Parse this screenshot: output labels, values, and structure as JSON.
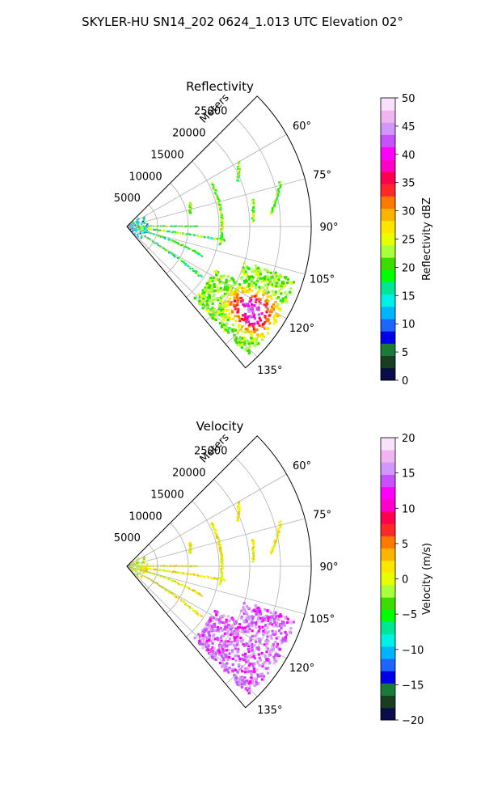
{
  "title": "SKYLER-HU  SN14_202  0624_1.013 UTC Elevation 02°",
  "chart_data": [
    {
      "type": "heatmap",
      "projection": "polar-sector",
      "title": "Reflectivity",
      "range_label": "Meters",
      "range_ticks": [
        "5000",
        "10000",
        "15000",
        "20000",
        "25000"
      ],
      "range_values": [
        5000,
        10000,
        15000,
        20000,
        25000
      ],
      "range_max": 30000,
      "azimuth_ticks": [
        "60°",
        "75°",
        "90°",
        "105°",
        "120°",
        "135°"
      ],
      "azimuth_values": [
        60,
        75,
        90,
        105,
        120,
        135
      ],
      "azimuth_range": [
        45,
        140
      ],
      "grid": true,
      "colorbar": {
        "label": "Reflectivity dBZ",
        "ticks": [
          "0",
          "5",
          "10",
          "15",
          "20",
          "25",
          "30",
          "35",
          "40",
          "45",
          "50"
        ],
        "range": [
          0,
          50
        ],
        "colors": [
          "#0c0c4a",
          "#183d20",
          "#1a7a3a",
          "#0000e6",
          "#1e64ff",
          "#00b4ff",
          "#00f0e6",
          "#00e696",
          "#00ff00",
          "#3cdc00",
          "#aaff3c",
          "#e6ff00",
          "#ffe600",
          "#ffb400",
          "#ff7800",
          "#ff2828",
          "#ff0050",
          "#ff00c8",
          "#ff00ff",
          "#c850ff",
          "#d296ff",
          "#f0b4f0",
          "#fae1fa"
        ]
      }
    },
    {
      "type": "heatmap",
      "projection": "polar-sector",
      "title": "Velocity",
      "range_label": "Meters",
      "range_ticks": [
        "5000",
        "10000",
        "15000",
        "20000",
        "25000"
      ],
      "range_values": [
        5000,
        10000,
        15000,
        20000,
        25000
      ],
      "range_max": 30000,
      "azimuth_ticks": [
        "60°",
        "75°",
        "90°",
        "105°",
        "120°",
        "135°"
      ],
      "azimuth_values": [
        60,
        75,
        90,
        105,
        120,
        135
      ],
      "azimuth_range": [
        45,
        140
      ],
      "grid": true,
      "colorbar": {
        "label": "Velocity (m/s)",
        "ticks": [
          "−20",
          "−15",
          "−10",
          "−5",
          "0",
          "5",
          "10",
          "15",
          "20"
        ],
        "range": [
          -20,
          20
        ],
        "colors": [
          "#0c0c4a",
          "#183d20",
          "#1a7a3a",
          "#0000e6",
          "#1e64ff",
          "#00b4ff",
          "#00f0e6",
          "#00e696",
          "#00ff00",
          "#3cdc00",
          "#aaff3c",
          "#e6ff00",
          "#ffe600",
          "#ffb400",
          "#ff7800",
          "#ff2828",
          "#ff0050",
          "#ff00c8",
          "#ff00ff",
          "#c850ff",
          "#d296ff",
          "#f0b4f0",
          "#fae1fa"
        ]
      }
    }
  ]
}
